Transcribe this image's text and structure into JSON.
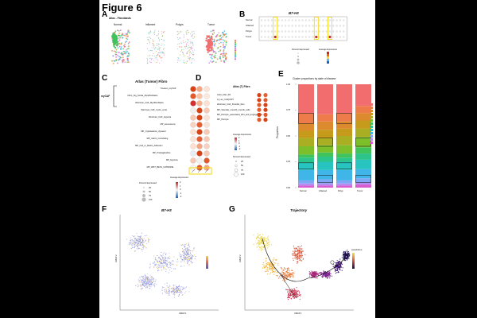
{
  "figure": {
    "title": "Figure 6"
  },
  "panels": {
    "A": {
      "label": "A",
      "title": "Atlas - Fibroblasts",
      "facets": [
        "Normal",
        "Inflamed",
        "Polyps",
        "Tumor"
      ]
    },
    "B": {
      "label": "B",
      "title": "B7-H3",
      "rows": [
        "Normal",
        "Inflamed",
        "Polyps",
        "Tumor"
      ],
      "legend_pct_title": "Percent Expressed",
      "legend_avg_title": "Average Expression"
    },
    "C": {
      "label": "C",
      "title": "Atlas (Tumor) Fibro",
      "group_label": "myCAF",
      "rows": [
        "Tuveson_myCAF",
        "Fibro_Sig_Smika_Myofibroblasts",
        "Weizman_CAF_Myofibroblasts",
        "Weizman_CAF_Cycle_cycle",
        "Weizman_CAF_Hypoxia",
        "MP_senescence",
        "MP_Cytoskeleton_dynamic",
        "MP_matrix_remodeling",
        "MP_Cell_or_Matrix_Adhesion",
        "MP_Prostaglandine",
        "MP_Hypoxia",
        "MP_WNT_BETA_CATENINE"
      ],
      "legend_pct_title": "Percent Expressed",
      "legend_pct_values": [
        "25",
        "50",
        "75",
        "100"
      ],
      "legend_avg_title": "Average Expression",
      "legend_avg_values": [
        "2",
        "1",
        "0",
        "-1",
        "-2"
      ]
    },
    "D": {
      "label": "D",
      "title": "Atlas (T) Fibro",
      "rows": [
        "Gold_CAF_SN",
        "H_Luo_CAF(IVR7",
        "Weizman_CAF_Periodic_Reo",
        "MP_Vascular_smooth_muscle_cells",
        "MP_Pericyte_associated_Wnt_and_angiogenesis",
        "MP_Pericyte"
      ],
      "legend_avg_title": "Average Expression",
      "legend_avg_values": [
        "2",
        "1",
        "0",
        "-1",
        "-2"
      ],
      "legend_pct_title": "Percent Expressed",
      "legend_pct_values": [
        "25",
        "50",
        "75",
        "100"
      ]
    },
    "E": {
      "label": "E",
      "title": "Cluster proportions by state of disease",
      "ylabel": "Proportion",
      "yticks": [
        "0.00",
        "0.25",
        "0.50",
        "0.75",
        "1.00"
      ],
      "categories": [
        "Normal",
        "Inflamed",
        "Polyp",
        "Tumor"
      ]
    },
    "F": {
      "label": "F",
      "title": "B7-H3",
      "xlabel": "UMAP 1",
      "ylabel": "UMAP 2"
    },
    "G": {
      "label": "G",
      "title": "Trajectory",
      "xlabel": "UMAP 1",
      "ylabel": "UMAP 2",
      "legend_title": "pseudotime"
    }
  },
  "chart_data": [
    {
      "type": "bar",
      "title": "Cluster proportions by state of disease",
      "ylabel": "Proportion",
      "ylim": [
        0,
        1
      ],
      "categories": [
        "Normal",
        "Inflamed",
        "Polyp",
        "Tumor"
      ],
      "stacked": true,
      "series": [
        {
          "color": "#d95bd0",
          "values": [
            0.02,
            0.02,
            0.02,
            0.03
          ]
        },
        {
          "color": "#b58cf0",
          "values": [
            0.02,
            0.02,
            0.02,
            0.02
          ]
        },
        {
          "color": "#7fa7f5",
          "values": [
            0.03,
            0.04,
            0.03,
            0.04
          ]
        },
        {
          "color": "#3fb5e8",
          "values": [
            0.1,
            0.09,
            0.1,
            0.09
          ]
        },
        {
          "color": "#27c4c0",
          "values": [
            0.07,
            0.08,
            0.08,
            0.09
          ]
        },
        {
          "color": "#2cc48a",
          "values": [
            0.05,
            0.05,
            0.04,
            0.06
          ]
        },
        {
          "color": "#3fc35a",
          "values": [
            0.03,
            0.04,
            0.04,
            0.06
          ]
        },
        {
          "color": "#7cbf2b",
          "values": [
            0.08,
            0.07,
            0.08,
            0.1
          ]
        },
        {
          "color": "#a9ae22",
          "values": [
            0.08,
            0.07,
            0.09,
            0.08
          ]
        },
        {
          "color": "#c69b1b",
          "values": [
            0.07,
            0.08,
            0.07,
            0.08
          ]
        },
        {
          "color": "#dd8a2e",
          "values": [
            0.07,
            0.08,
            0.07,
            0.07
          ]
        },
        {
          "color": "#ee7c4b",
          "values": [
            0.1,
            0.07,
            0.08,
            0.07
          ]
        },
        {
          "color": "#f26d6d",
          "values": [
            0.28,
            0.29,
            0.28,
            0.21
          ]
        }
      ]
    }
  ]
}
